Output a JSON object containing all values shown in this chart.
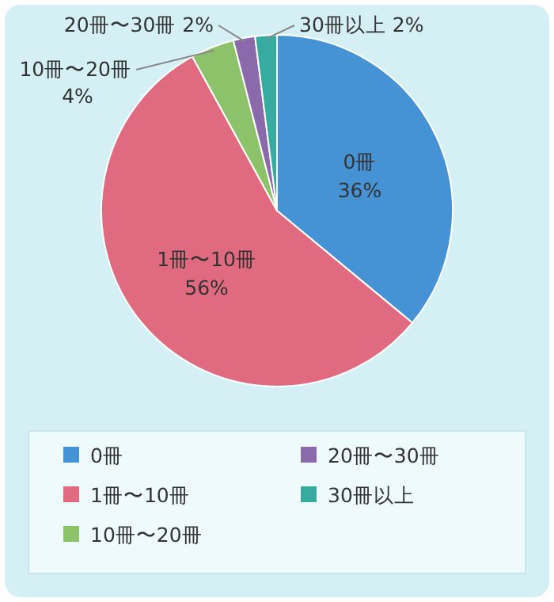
{
  "chart_data": {
    "type": "pie",
    "categories": [
      "0冊",
      "1冊〜10冊",
      "10冊〜20冊",
      "20冊〜30冊",
      "30冊以上"
    ],
    "values": [
      36,
      56,
      4,
      2,
      2
    ],
    "value_labels": [
      "36%",
      "56%",
      "4%",
      "2%",
      "2%"
    ],
    "colors": [
      "#4592d4",
      "#e06b80",
      "#8cc26a",
      "#8a6aaa",
      "#37aba0"
    ],
    "legend": "bottom"
  }
}
